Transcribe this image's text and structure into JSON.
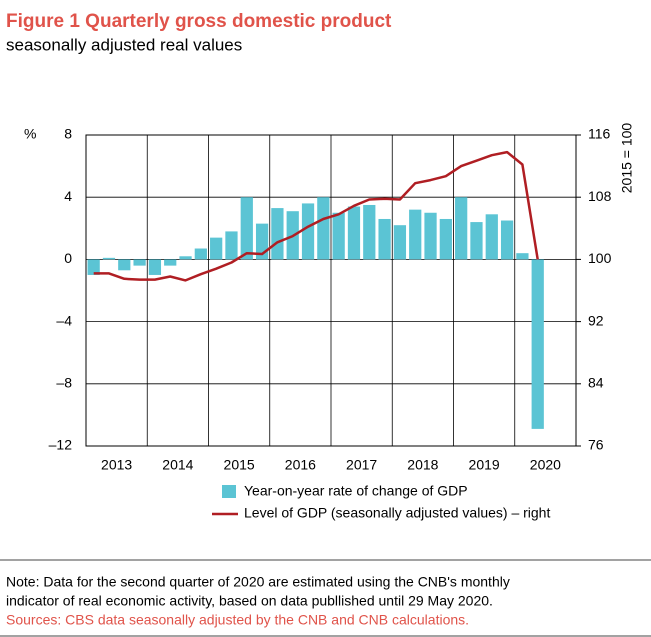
{
  "chart_data": {
    "type": "bar",
    "title": "Figure 1 Quarterly gross domestic product",
    "subtitle": "seasonally adjusted real values",
    "y_label": "%",
    "y2_label": "2015 = 100",
    "x_labels": [
      "2013",
      "2014",
      "2015",
      "2016",
      "2017",
      "2018",
      "2019",
      "2020"
    ],
    "ylim": [
      -12,
      8
    ],
    "yticks": [
      {
        "value": -12,
        "label": "–12"
      },
      {
        "value": -8,
        "label": "–8"
      },
      {
        "value": -4,
        "label": "–4"
      },
      0,
      4,
      8
    ],
    "y2lim": [
      76,
      116
    ],
    "y2ticks": [
      76,
      84,
      92,
      100,
      108,
      116
    ],
    "grid": true,
    "series": [
      {
        "name": "Year-on-year rate of change of GDP",
        "type": "bar",
        "color": "#5bc4d4",
        "values": [
          -1.0,
          0.1,
          -0.7,
          -0.4,
          -1.0,
          -0.4,
          0.2,
          0.7,
          1.4,
          1.8,
          4.0,
          2.3,
          3.3,
          3.1,
          3.6,
          4.0,
          3.0,
          3.4,
          3.5,
          2.6,
          2.2,
          3.2,
          3.0,
          2.6,
          4.0,
          2.4,
          2.9,
          2.5,
          0.4,
          -10.9
        ]
      },
      {
        "name": "Level of GDP (seasonally adjusted values) – right",
        "type": "line",
        "axis": "y2",
        "color": "#b01e23",
        "values": [
          98.2,
          98.2,
          97.5,
          97.4,
          97.4,
          97.8,
          97.3,
          98.1,
          98.8,
          99.6,
          100.8,
          100.7,
          102.2,
          103.0,
          104.2,
          105.2,
          105.8,
          106.9,
          107.7,
          107.8,
          107.7,
          109.8,
          110.2,
          110.7,
          112.0,
          112.7,
          113.4,
          113.8,
          112.2,
          100.0
        ]
      }
    ],
    "note": [
      "Note: Data for the second quarter of 2020 are estimated using the CNB's monthly",
      "indicator of real economic activity, based on data publlished until 29 May 2020."
    ],
    "sources": "Sources: CBS data seasonally adjusted by the CNB and CNB calculations."
  }
}
